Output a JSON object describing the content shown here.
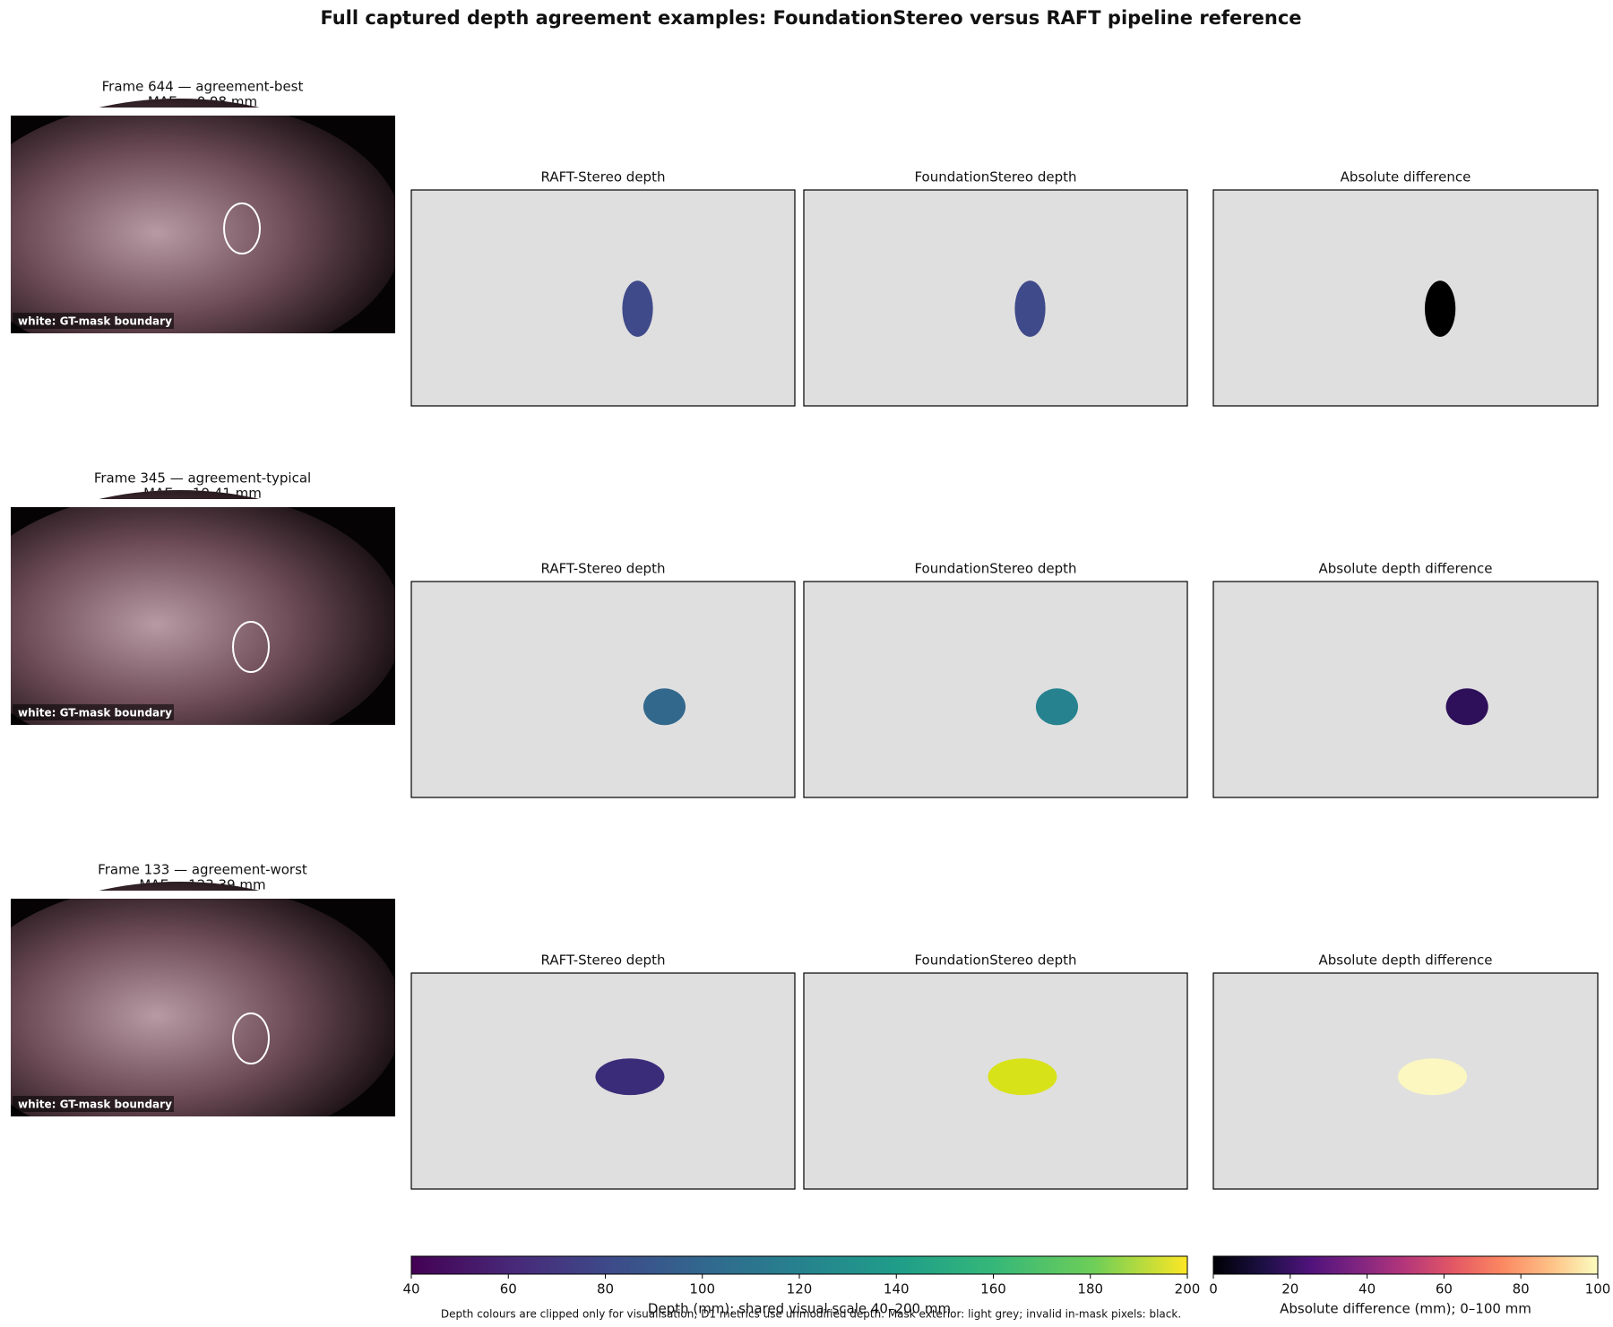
{
  "title": "Full captured depth agreement examples: FoundationStereo versus RAFT pipeline reference",
  "rows": [
    {
      "frame_label": "Frame 644 — agreement-best",
      "mae_label": "MAE = 0.98 mm",
      "overlay_note": "white: GT-mask boundary",
      "panel_titles": [
        "RAFT-Stereo depth",
        "FoundationStereo depth",
        "Absolute difference"
      ]
    },
    {
      "frame_label": "Frame 345 — agreement-typical",
      "mae_label": "MAE = 19.41 mm",
      "overlay_note": "white: GT-mask boundary",
      "panel_titles": [
        "RAFT-Stereo depth",
        "FoundationStereo depth",
        "Absolute depth difference"
      ]
    },
    {
      "frame_label": "Frame 133 — agreement-worst",
      "mae_label": "MAE = 123.39 mm",
      "overlay_note": "white: GT-mask boundary",
      "panel_titles": [
        "RAFT-Stereo depth",
        "FoundationStereo depth",
        "Absolute depth difference"
      ]
    }
  ],
  "colorbars": [
    {
      "label": "Depth (mm); shared visual scale 40–200 mm",
      "colormap": "viridis",
      "lim": [
        40,
        200
      ],
      "ticks": [
        40,
        60,
        80,
        100,
        120,
        140,
        160,
        180,
        200
      ]
    },
    {
      "label": "Absolute difference (mm); 0–100 mm",
      "colormap": "magma",
      "lim": [
        0,
        100
      ],
      "ticks": [
        0,
        20,
        40,
        60,
        80,
        100
      ]
    }
  ],
  "footnote": "Depth colours are clipped only for visualisation; D1 metrics use unmodified depth. Mask exterior: light grey; invalid in-mask pixels: black."
}
